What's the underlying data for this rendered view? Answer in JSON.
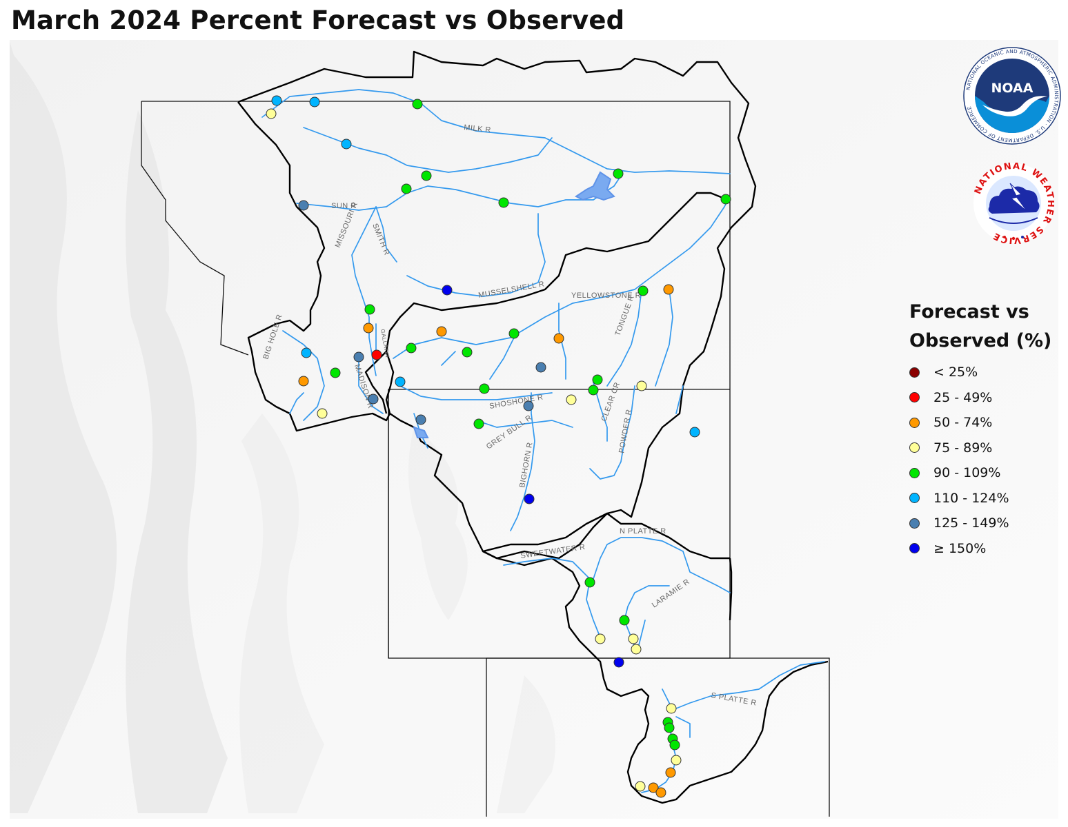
{
  "title": "March 2024 Percent Forecast vs Observed",
  "legend": {
    "title_line1": "Forecast vs",
    "title_line2": "Observed (%)",
    "categories": [
      {
        "label": "< 25%",
        "color": "#8b0000"
      },
      {
        "label": "25 - 49%",
        "color": "#ff0000"
      },
      {
        "label": "50 - 74%",
        "color": "#ff9900"
      },
      {
        "label": "75 - 89%",
        "color": "#ffff99"
      },
      {
        "label": "90 - 109%",
        "color": "#00e600"
      },
      {
        "label": "110 - 124%",
        "color": "#00b4ff"
      },
      {
        "label": "125 - 149%",
        "color": "#4a7fb0"
      },
      {
        "label": "≥ 150%",
        "color": "#0000ee"
      }
    ]
  },
  "logos": {
    "noaa": {
      "text": "NOAA",
      "ring_text": "NATIONAL OCEANIC AND ATMOSPHERIC ADMINISTRATION · U.S. DEPARTMENT OF COMMERCE"
    },
    "nws": {
      "ring_text": "NATIONAL WEATHER SERVICE"
    }
  },
  "river_labels": {
    "milk": "MILK R",
    "sun": "SUN R",
    "missouri": "MISSOURI R",
    "smith": "SMITH R",
    "musselshell": "MUSSELSHELL R",
    "yellowstone": "YELLOWSTONE R",
    "tongue": "TONGUE R",
    "big_hole": "BIG HOLE R",
    "madison": "MADISON R",
    "gallatin": "GALLATIN",
    "shoshone": "SHOSHONE R",
    "grey_bull": "GREY BULL R",
    "bighorn": "BIGHORN R",
    "clear_cr": "CLEAR CR",
    "powder": "POWDER R",
    "n_platte": "N PLATTE R",
    "sweetwater": "SWEETWATER R",
    "laramie": "LARAMIE R",
    "s_platte": "S PLATTE R"
  }
}
